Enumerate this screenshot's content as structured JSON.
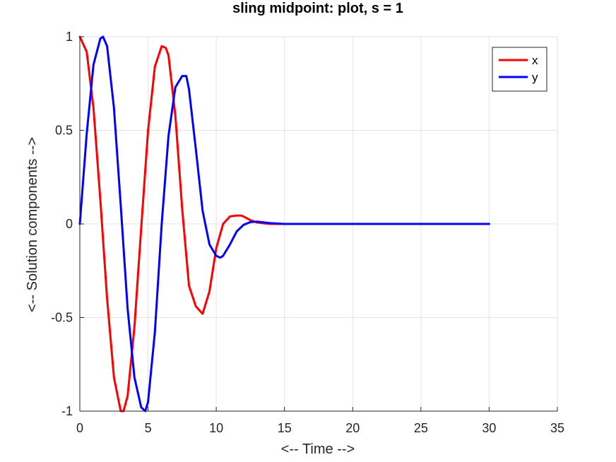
{
  "chart_data": {
    "type": "line",
    "title": "sling midpoint: plot, s = 1",
    "xlabel": "<-- Time -->",
    "ylabel": "<-- Solution components -->",
    "xlim": [
      0,
      35
    ],
    "ylim": [
      -1,
      1
    ],
    "xticks": [
      0,
      5,
      10,
      15,
      20,
      25,
      30,
      35
    ],
    "yticks": [
      -1,
      -0.5,
      0,
      0.5,
      1
    ],
    "xtick_labels": [
      "0",
      "5",
      "10",
      "15",
      "20",
      "25",
      "30",
      "35"
    ],
    "ytick_labels": [
      "-1",
      "-0.5",
      "0",
      "0.5",
      "1"
    ],
    "grid": true,
    "legend_position": "top-right",
    "series": [
      {
        "name": "x",
        "color": "#ff0000",
        "x": [
          0,
          0.5,
          1,
          1.5,
          2,
          2.5,
          3,
          3.2,
          3.5,
          4,
          4.5,
          5,
          5.5,
          6,
          6.3,
          6.5,
          7,
          7.5,
          8,
          8.5,
          9,
          9.5,
          10,
          10.5,
          11,
          11.5,
          11.8,
          12,
          12.5,
          13,
          13.5,
          14,
          15,
          16,
          18,
          20,
          25,
          30
        ],
        "y": [
          1,
          0.92,
          0.62,
          0.13,
          -0.4,
          -0.82,
          -1.0,
          -1.0,
          -0.92,
          -0.55,
          -0.02,
          0.5,
          0.84,
          0.95,
          0.94,
          0.9,
          0.58,
          0.08,
          -0.33,
          -0.44,
          -0.48,
          -0.36,
          -0.13,
          0.0,
          0.04,
          0.045,
          0.045,
          0.04,
          0.02,
          0.008,
          0.003,
          0.0,
          0.0,
          0.0,
          0.0,
          0.0,
          0.0,
          0.0
        ]
      },
      {
        "name": "y",
        "color": "#0000ff",
        "x": [
          0,
          0.5,
          1,
          1.5,
          1.7,
          2,
          2.5,
          3,
          3.5,
          4,
          4.5,
          4.8,
          5,
          5.5,
          6,
          6.5,
          7,
          7.5,
          7.8,
          8,
          8.5,
          9,
          9.5,
          10,
          10.3,
          10.5,
          11,
          11.5,
          12,
          12.5,
          13,
          13.5,
          14,
          15,
          16,
          18,
          20,
          25,
          30
        ],
        "y": [
          0,
          0.48,
          0.85,
          0.99,
          1.0,
          0.95,
          0.62,
          0.1,
          -0.45,
          -0.82,
          -0.98,
          -1.0,
          -0.95,
          -0.58,
          0.0,
          0.47,
          0.73,
          0.79,
          0.79,
          0.72,
          0.4,
          0.07,
          -0.11,
          -0.17,
          -0.18,
          -0.17,
          -0.11,
          -0.04,
          -0.005,
          0.01,
          0.012,
          0.008,
          0.004,
          0.0,
          0.0,
          0.0,
          0.0,
          0.0,
          0.0
        ]
      }
    ]
  }
}
